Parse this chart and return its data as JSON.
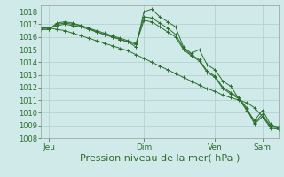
{
  "bg_color": "#d0eaea",
  "grid_color": "#b0cccc",
  "line_color": "#2d6e2d",
  "xlabel": "Pression niveau de la mer( hPa )",
  "xlabel_fontsize": 8,
  "ylim": [
    1008,
    1018.5
  ],
  "yticks": [
    1008,
    1009,
    1010,
    1011,
    1012,
    1013,
    1014,
    1015,
    1016,
    1017,
    1018
  ],
  "ytick_fontsize": 6,
  "xtick_labels": [
    "Jeu",
    "Dim",
    "Ven",
    "Sam"
  ],
  "xtick_positions": [
    1,
    13,
    22,
    28
  ],
  "total_points": 31,
  "series1": [
    1016.6,
    1016.6,
    1017.1,
    1017.2,
    1017.1,
    1016.9,
    1016.7,
    1016.4,
    1016.2,
    1016.0,
    1015.8,
    1015.6,
    1015.2,
    1018.0,
    1018.2,
    1017.6,
    1017.2,
    1016.8,
    1015.2,
    1014.7,
    1015.0,
    1013.8,
    1013.4,
    1012.5,
    1012.1,
    1011.1,
    1010.2,
    1009.4,
    1010.2,
    1009.1,
    1008.8
  ],
  "series2": [
    1016.6,
    1016.6,
    1017.0,
    1017.1,
    1017.0,
    1016.9,
    1016.7,
    1016.5,
    1016.3,
    1016.1,
    1015.9,
    1015.7,
    1015.5,
    1017.6,
    1017.5,
    1017.1,
    1016.7,
    1016.2,
    1015.1,
    1014.6,
    1014.2,
    1013.3,
    1012.9,
    1012.0,
    1011.6,
    1011.2,
    1010.4,
    1009.2,
    1009.9,
    1008.9,
    1008.8
  ],
  "series3": [
    1016.7,
    1016.7,
    1016.9,
    1017.0,
    1016.9,
    1016.8,
    1016.6,
    1016.4,
    1016.2,
    1016.0,
    1015.8,
    1015.6,
    1015.4,
    1017.3,
    1017.2,
    1016.8,
    1016.4,
    1016.0,
    1015.0,
    1014.5,
    1014.1,
    1013.2,
    1012.8,
    1011.9,
    1011.5,
    1011.1,
    1010.3,
    1009.1,
    1009.7,
    1008.8,
    1008.7
  ],
  "series4": [
    1016.7,
    1016.7,
    1016.6,
    1016.5,
    1016.3,
    1016.1,
    1015.9,
    1015.7,
    1015.5,
    1015.3,
    1015.1,
    1014.9,
    1014.6,
    1014.3,
    1014.0,
    1013.7,
    1013.4,
    1013.1,
    1012.8,
    1012.5,
    1012.2,
    1011.9,
    1011.7,
    1011.4,
    1011.2,
    1011.0,
    1010.8,
    1010.4,
    1009.7,
    1009.0,
    1008.9
  ]
}
